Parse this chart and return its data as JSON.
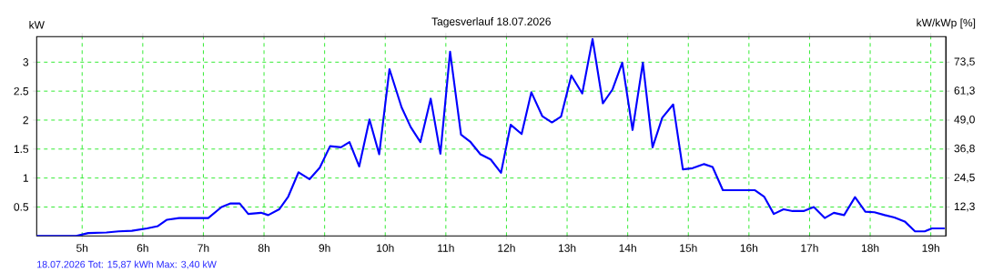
{
  "chart_data": {
    "type": "line",
    "title": "Tagesverlauf 18.07.2026",
    "ylabel": "kW",
    "y2label": "kW/kWp [%]",
    "annotations": [
      "18.07.2026 Tot: 15,87 kWh Max: 3,40 kW"
    ],
    "xlim": [
      4.25,
      19.25
    ],
    "ylim": [
      0,
      3.44
    ],
    "y2lim": [
      0,
      84.28
    ],
    "xticks": [
      {
        "value": 5,
        "label": "5h"
      },
      {
        "value": 6,
        "label": "6h"
      },
      {
        "value": 7,
        "label": "7h"
      },
      {
        "value": 8,
        "label": "8h"
      },
      {
        "value": 9,
        "label": "9h"
      },
      {
        "value": 10,
        "label": "10h"
      },
      {
        "value": 11,
        "label": "11h"
      },
      {
        "value": 12,
        "label": "12h"
      },
      {
        "value": 13,
        "label": "13h"
      },
      {
        "value": 14,
        "label": "14h"
      },
      {
        "value": 15,
        "label": "15h"
      },
      {
        "value": 16,
        "label": "16h"
      },
      {
        "value": 17,
        "label": "17h"
      },
      {
        "value": 18,
        "label": "18h"
      },
      {
        "value": 19,
        "label": "19h"
      }
    ],
    "yticks": [
      0.5,
      1,
      1.5,
      2,
      2.5,
      3
    ],
    "y2ticks": [
      {
        "value": 12.25,
        "label": "12,3"
      },
      {
        "value": 24.5,
        "label": "24,5"
      },
      {
        "value": 36.75,
        "label": "36,8"
      },
      {
        "value": 49,
        "label": "49,0"
      },
      {
        "value": 61.25,
        "label": "61,3"
      },
      {
        "value": 73.5,
        "label": "73,5"
      }
    ],
    "grid": true,
    "x": [
      4.25,
      4.9,
      5.1,
      5.4,
      5.6,
      5.82,
      6.07,
      6.25,
      6.4,
      6.6,
      7.08,
      7.3,
      7.44,
      7.6,
      7.74,
      7.95,
      8.07,
      8.25,
      8.4,
      8.57,
      8.75,
      8.92,
      9.09,
      9.27,
      9.41,
      9.57,
      9.74,
      9.9,
      10.07,
      10.27,
      10.42,
      10.58,
      10.75,
      10.91,
      11.07,
      11.25,
      11.4,
      11.57,
      11.74,
      11.91,
      12.07,
      12.25,
      12.41,
      12.59,
      12.75,
      12.9,
      13.07,
      13.25,
      13.42,
      13.59,
      13.75,
      13.91,
      14.08,
      14.25,
      14.41,
      14.57,
      14.75,
      14.91,
      15.07,
      15.26,
      15.4,
      15.57,
      16.1,
      16.25,
      16.41,
      16.57,
      16.72,
      16.9,
      17.07,
      17.25,
      17.4,
      17.57,
      17.75,
      17.92,
      18.07,
      18.24,
      18.4,
      18.57,
      18.74,
      18.9,
      19.02,
      19.23
    ],
    "series": [
      {
        "color": "#0000ff",
        "values": [
          0,
          0,
          0.05,
          0.06,
          0.08,
          0.09,
          0.13,
          0.17,
          0.28,
          0.31,
          0.31,
          0.5,
          0.56,
          0.56,
          0.38,
          0.4,
          0.36,
          0.46,
          0.68,
          1.1,
          0.98,
          1.18,
          1.55,
          1.53,
          1.62,
          1.2,
          2.01,
          1.41,
          2.88,
          2.22,
          1.88,
          1.62,
          2.37,
          1.42,
          3.18,
          1.75,
          1.63,
          1.41,
          1.32,
          1.09,
          1.92,
          1.76,
          2.48,
          2.07,
          1.96,
          2.06,
          2.77,
          2.46,
          3.4,
          2.29,
          2.53,
          2.99,
          1.83,
          2.99,
          1.53,
          2.04,
          2.27,
          1.15,
          1.17,
          1.24,
          1.19,
          0.79,
          0.79,
          0.68,
          0.38,
          0.46,
          0.43,
          0.43,
          0.5,
          0.31,
          0.4,
          0.36,
          0.67,
          0.42,
          0.41,
          0.36,
          0.32,
          0.25,
          0.08,
          0.08,
          0.13,
          0.13
        ]
      }
    ]
  }
}
